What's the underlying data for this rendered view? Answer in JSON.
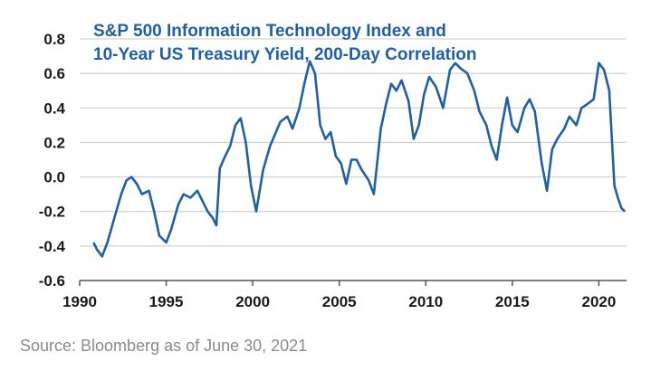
{
  "chart_data": {
    "type": "line",
    "title_lines": [
      "S&P 500 Information Technology Index and",
      "10-Year US Treasury Yield, 200-Day Correlation"
    ],
    "xlabel": "",
    "ylabel": "",
    "xlim": [
      1990,
      2021.6
    ],
    "ylim": [
      -0.6,
      0.8
    ],
    "grid": true,
    "x_ticks": [
      "1990",
      "1995",
      "2000",
      "2005",
      "2010",
      "2015",
      "2020"
    ],
    "y_ticks": [
      "0.8",
      "0.6",
      "0.4",
      "0.2",
      "0.0",
      "-0.2",
      "-0.4",
      "-0.6"
    ],
    "series": [
      {
        "color": "#1f5fa8",
        "x": [
          1990.8,
          1991.0,
          1991.3,
          1991.6,
          1992.0,
          1992.4,
          1992.7,
          1993.0,
          1993.3,
          1993.6,
          1994.0,
          1994.3,
          1994.6,
          1995.0,
          1995.3,
          1995.7,
          1996.0,
          1996.4,
          1996.8,
          1997.1,
          1997.4,
          1997.7,
          1997.9,
          1998.1,
          1998.4,
          1998.7,
          1999.0,
          1999.3,
          1999.6,
          1999.9,
          2000.2,
          2000.6,
          2001.0,
          2001.3,
          2001.6,
          2002.0,
          2002.3,
          2002.7,
          2003.0,
          2003.3,
          2003.6,
          2003.9,
          2004.2,
          2004.5,
          2004.8,
          2005.1,
          2005.4,
          2005.7,
          2006.0,
          2006.3,
          2006.7,
          2007.0,
          2007.4,
          2007.7,
          2008.0,
          2008.3,
          2008.6,
          2009.0,
          2009.3,
          2009.6,
          2009.9,
          2010.2,
          2010.6,
          2011.0,
          2011.4,
          2011.7,
          2012.0,
          2012.4,
          2012.8,
          2013.1,
          2013.5,
          2013.8,
          2014.1,
          2014.4,
          2014.7,
          2015.0,
          2015.3,
          2015.7,
          2016.0,
          2016.3,
          2016.7,
          2017.0,
          2017.3,
          2017.6,
          2018.0,
          2018.3,
          2018.7,
          2019.0,
          2019.3,
          2019.7,
          2020.0,
          2020.3,
          2020.6,
          2020.9,
          2021.1,
          2021.3,
          2021.5
        ],
        "values": [
          -0.38,
          -0.42,
          -0.46,
          -0.38,
          -0.24,
          -0.1,
          -0.02,
          0.0,
          -0.04,
          -0.1,
          -0.08,
          -0.2,
          -0.34,
          -0.38,
          -0.3,
          -0.16,
          -0.1,
          -0.12,
          -0.08,
          -0.14,
          -0.2,
          -0.24,
          -0.28,
          0.05,
          0.12,
          0.18,
          0.3,
          0.34,
          0.2,
          -0.05,
          -0.2,
          0.04,
          0.18,
          0.25,
          0.32,
          0.35,
          0.28,
          0.4,
          0.55,
          0.67,
          0.6,
          0.3,
          0.22,
          0.26,
          0.12,
          0.08,
          -0.04,
          0.1,
          0.1,
          0.04,
          -0.02,
          -0.1,
          0.28,
          0.42,
          0.54,
          0.5,
          0.56,
          0.44,
          0.22,
          0.3,
          0.48,
          0.58,
          0.52,
          0.4,
          0.62,
          0.66,
          0.63,
          0.6,
          0.5,
          0.38,
          0.3,
          0.18,
          0.1,
          0.3,
          0.46,
          0.3,
          0.26,
          0.4,
          0.45,
          0.38,
          0.08,
          -0.08,
          0.16,
          0.22,
          0.28,
          0.35,
          0.3,
          0.4,
          0.42,
          0.45,
          0.66,
          0.62,
          0.5,
          -0.05,
          -0.12,
          -0.18,
          -0.2
        ]
      }
    ]
  },
  "source": "Source: Bloomberg as of June 30, 2021"
}
